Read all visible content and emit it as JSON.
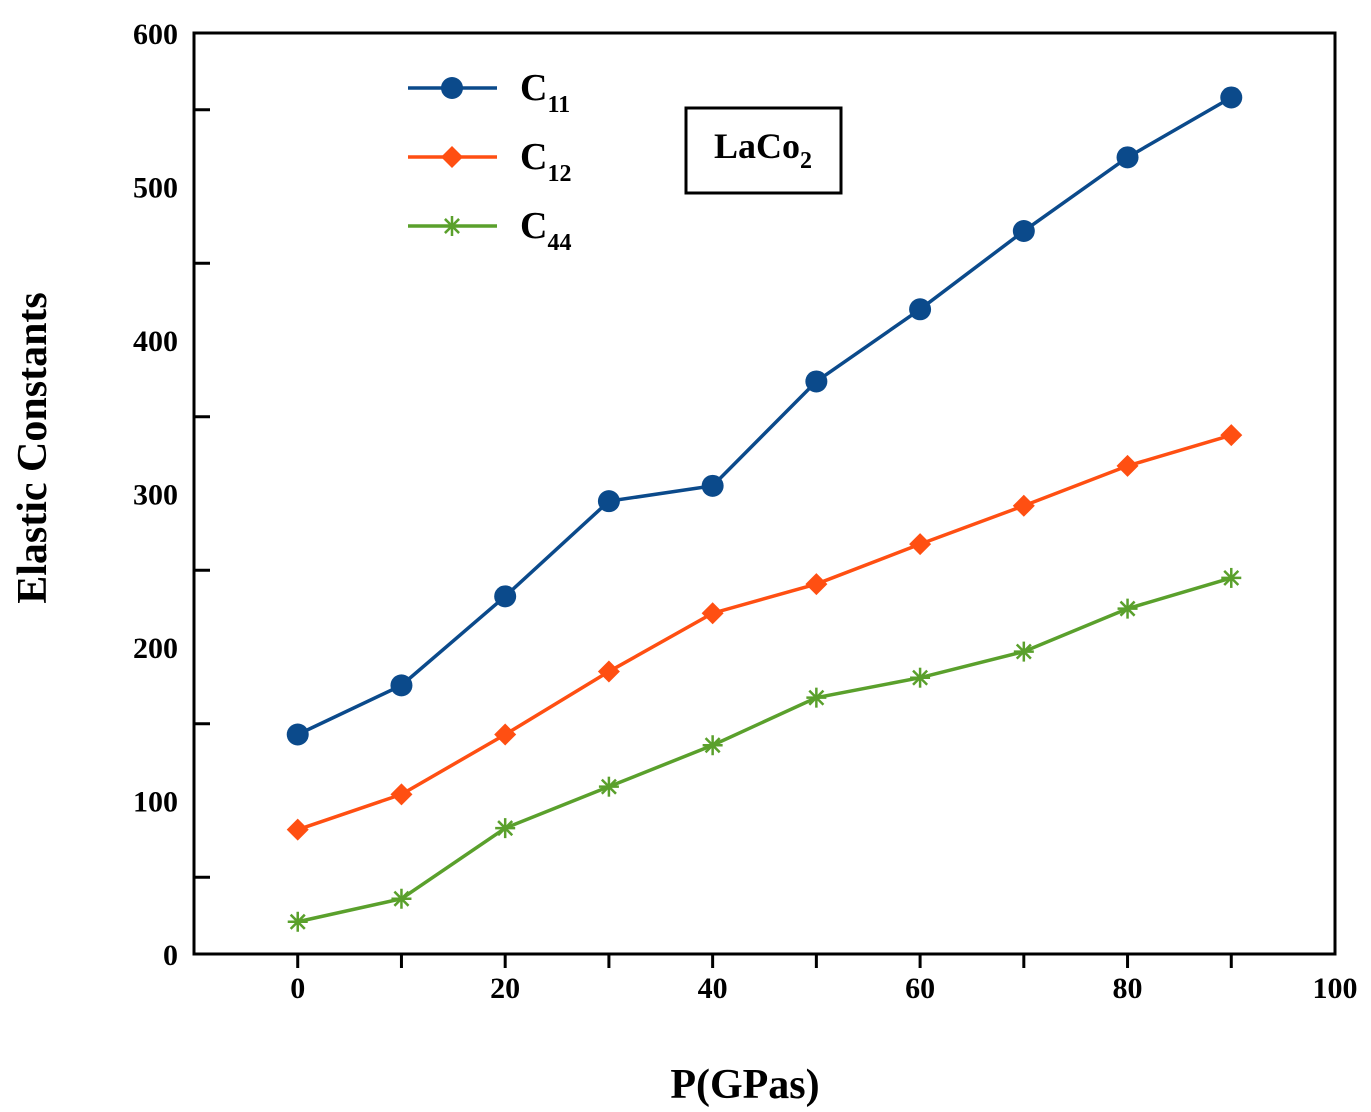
{
  "chart_data": {
    "type": "line",
    "title": "",
    "xlabel": "P(GPas)",
    "ylabel": "Elastic Constants",
    "xlim": [
      -10,
      100
    ],
    "ylim": [
      0,
      600
    ],
    "x_ticks": [
      0,
      20,
      40,
      60,
      80,
      100
    ],
    "y_ticks": [
      0,
      100,
      200,
      300,
      400,
      500,
      600
    ],
    "grid": false,
    "legend_placement": "top-left",
    "annotation": {
      "main": "LaCo",
      "sub": "2"
    },
    "x": [
      0,
      10,
      20,
      30,
      40,
      50,
      60,
      70,
      80,
      90
    ],
    "series": [
      {
        "name": "C",
        "sub": "11",
        "marker": "circle",
        "color": "#0b4a8b",
        "values": [
          143,
          175,
          233,
          295,
          305,
          373,
          420,
          471,
          519,
          558
        ]
      },
      {
        "name": "C",
        "sub": "12",
        "marker": "diamond",
        "color": "#ff4f12",
        "values": [
          81,
          104,
          143,
          184,
          222,
          241,
          267,
          292,
          318,
          338
        ]
      },
      {
        "name": "C",
        "sub": "44",
        "marker": "asterisk",
        "color": "#5aa02c",
        "values": [
          21,
          36,
          82,
          109,
          136,
          167,
          180,
          197,
          225,
          245
        ]
      }
    ]
  }
}
